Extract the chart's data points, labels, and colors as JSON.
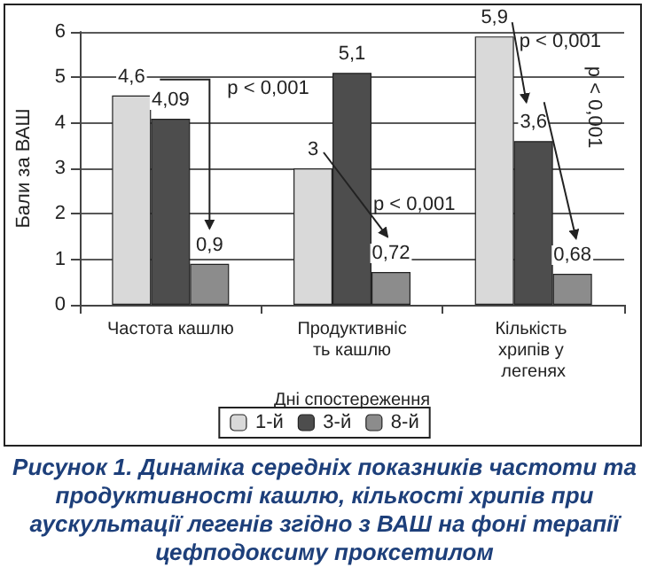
{
  "chart_data": {
    "type": "bar",
    "title": "Рисунок 1. Динаміка середніх показників частоти та продуктивності кашлю, кількості хрипів при аускультації легенів згідно з ВАШ на фоні терапії цефподоксиму проксетилом",
    "xlabel": "Дні спостереження",
    "ylabel": "Бали за ВАШ",
    "categories": [
      "Частота кашлю",
      "Продуктивність кашлю",
      "Кількість хрипів у легенях"
    ],
    "series": [
      {
        "name": "1-й",
        "color": "#d9d9d9",
        "values": [
          4.6,
          3,
          5.9
        ],
        "value_labels": [
          "4,6",
          "3",
          "5,9"
        ]
      },
      {
        "name": "3-й",
        "color": "#4d4d4d",
        "values": [
          4.09,
          5.1,
          3.6
        ],
        "value_labels": [
          "4,09",
          "5,1",
          "3,6"
        ]
      },
      {
        "name": "8-й",
        "color": "#8c8c8c",
        "values": [
          0.9,
          0.72,
          0.68
        ],
        "value_labels": [
          "0,9",
          "0,72",
          "0,68"
        ]
      }
    ],
    "ylim": [
      0,
      6
    ],
    "yticks": [
      0,
      1,
      2,
      3,
      4,
      5,
      6
    ],
    "grid": "y",
    "legend": "bottom",
    "annotations": [
      "p < 0,001",
      "p < 0,001",
      "p < 0,001",
      "p < 0,001"
    ]
  }
}
